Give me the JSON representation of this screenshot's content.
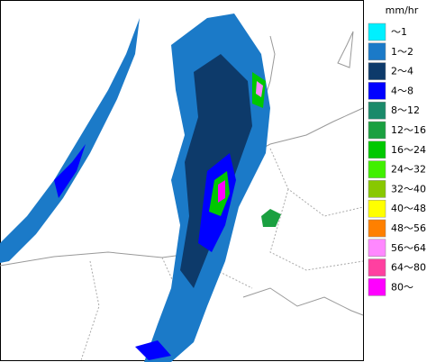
{
  "legend": {
    "title": "mm/hr",
    "items": [
      {
        "label": "～1",
        "color": "#00f0ff"
      },
      {
        "label": "1～2",
        "color": "#1b7ac8"
      },
      {
        "label": "2～4",
        "color": "#0d3a6a"
      },
      {
        "label": "4～8",
        "color": "#0000ff"
      },
      {
        "label": "8～12",
        "color": "#1a8a6a"
      },
      {
        "label": "12～16",
        "color": "#1aa040"
      },
      {
        "label": "16～24",
        "color": "#00c800"
      },
      {
        "label": "24～32",
        "color": "#40f000"
      },
      {
        "label": "32～40",
        "color": "#88c800"
      },
      {
        "label": "40～48",
        "color": "#ffff00"
      },
      {
        "label": "48～56",
        "color": "#ff8000"
      },
      {
        "label": "56～64",
        "color": "#ff88ff"
      },
      {
        "label": "64～80",
        "color": "#ff40a0"
      },
      {
        "label": "80～",
        "color": "#ff00ff"
      }
    ]
  }
}
